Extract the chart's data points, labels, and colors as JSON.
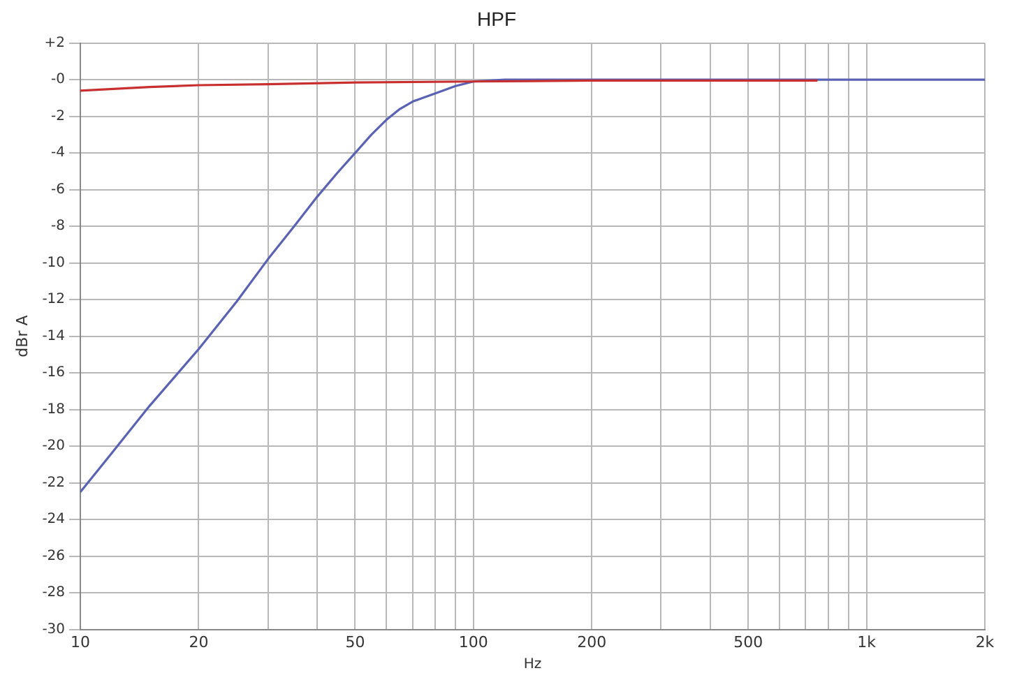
{
  "chart_data": {
    "type": "line",
    "title": "HPF",
    "xlabel": "Hz",
    "ylabel": "dBr A",
    "log": "x",
    "series": [
      {
        "color": "#5a62b4",
        "x": [
          10,
          12,
          15,
          20,
          25,
          30,
          35,
          40,
          45,
          50,
          55,
          60,
          65,
          70,
          80,
          90,
          100,
          120,
          150,
          200,
          300,
          500,
          1000,
          2000
        ],
        "values": [
          -22.5,
          -20.4,
          -17.8,
          -14.7,
          -12.1,
          -9.8,
          -8,
          -6.4,
          -5.1,
          -4,
          -3,
          -2.2,
          -1.6,
          -1.2,
          -0.75,
          -0.35,
          -0.1,
          0,
          0,
          0,
          0,
          0,
          0,
          0
        ]
      },
      {
        "color": "#c83030",
        "x": [
          10,
          15,
          20,
          30,
          50,
          100,
          200,
          500,
          750
        ],
        "values": [
          -0.6,
          -0.4,
          -0.3,
          -0.25,
          -0.15,
          -0.1,
          -0.05,
          -0.05,
          -0.05
        ]
      }
    ],
    "xlim": [
      10,
      2000
    ],
    "xticks": [
      10,
      20,
      {
        "value": 30,
        "label": null
      },
      {
        "value": 40,
        "label": null
      },
      50,
      {
        "value": 60,
        "label": null
      },
      {
        "value": 70,
        "label": null
      },
      {
        "value": 80,
        "label": null
      },
      {
        "value": 90,
        "label": null
      },
      100,
      200,
      {
        "value": 300,
        "label": null
      },
      {
        "value": 400,
        "label": null
      },
      500,
      {
        "value": 600,
        "label": null
      },
      {
        "value": 700,
        "label": null
      },
      {
        "value": 800,
        "label": null
      },
      {
        "value": 900,
        "label": null
      },
      {
        "value": 1000,
        "label": "1k"
      },
      {
        "value": 2000,
        "label": "2k"
      }
    ],
    "ylim": [
      -30,
      2
    ],
    "yticks": [
      {
        "value": 2,
        "label": "+2"
      },
      {
        "value": 0,
        "label": "-0"
      },
      -2,
      -4,
      -6,
      -8,
      -10,
      -12,
      -14,
      -16,
      -18,
      -20,
      -22,
      -24,
      -26,
      -28,
      -30
    ],
    "grid": true,
    "legend": false,
    "marker": "none",
    "line_style": "solid"
  }
}
